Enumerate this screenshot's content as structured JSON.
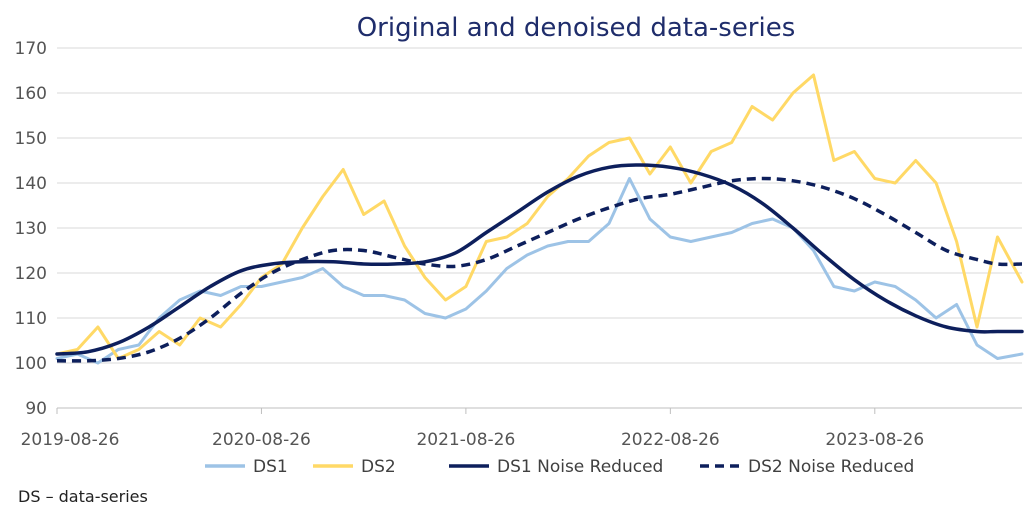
{
  "chart_data": {
    "type": "line",
    "title": "Original and denoised data-series",
    "xlabel": "",
    "ylabel": "",
    "ylim": [
      90,
      170
    ],
    "y_ticks": [
      90,
      100,
      110,
      120,
      130,
      140,
      150,
      160,
      170
    ],
    "x_range": [
      2019.65,
      2024.37
    ],
    "x_ticks": [
      {
        "label": "2019-08-26",
        "x": 2019.65
      },
      {
        "label": "2020-08-26",
        "x": 2020.65
      },
      {
        "label": "2021-08-26",
        "x": 2021.65
      },
      {
        "label": "2022-08-26",
        "x": 2022.65
      },
      {
        "label": "2023-08-26",
        "x": 2023.65
      }
    ],
    "grid": true,
    "legend_position": "bottom",
    "footnote": "DS – data-series",
    "series": [
      {
        "name": "DS1",
        "color": "#9dc3e6",
        "dash": "solid",
        "x": [
          2019.65,
          2019.75,
          2019.85,
          2019.95,
          2020.05,
          2020.15,
          2020.25,
          2020.35,
          2020.45,
          2020.55,
          2020.65,
          2020.75,
          2020.85,
          2020.95,
          2021.05,
          2021.15,
          2021.25,
          2021.35,
          2021.45,
          2021.55,
          2021.65,
          2021.75,
          2021.85,
          2021.95,
          2022.05,
          2022.15,
          2022.25,
          2022.35,
          2022.45,
          2022.55,
          2022.65,
          2022.75,
          2022.85,
          2022.95,
          2023.05,
          2023.15,
          2023.25,
          2023.35,
          2023.45,
          2023.55,
          2023.65,
          2023.75,
          2023.85,
          2023.95,
          2024.05,
          2024.15,
          2024.25,
          2024.37
        ],
        "y": [
          101,
          102,
          100,
          103,
          104,
          110,
          114,
          116,
          115,
          117,
          117,
          118,
          119,
          121,
          117,
          115,
          115,
          114,
          111,
          110,
          112,
          116,
          121,
          124,
          126,
          127,
          127,
          131,
          141,
          132,
          128,
          127,
          128,
          129,
          131,
          132,
          130,
          125,
          117,
          116,
          118,
          117,
          114,
          110,
          113,
          104,
          101,
          102
        ]
      },
      {
        "name": "DS2",
        "color": "#ffd966",
        "dash": "solid",
        "x": [
          2019.65,
          2019.75,
          2019.85,
          2019.95,
          2020.05,
          2020.15,
          2020.25,
          2020.35,
          2020.45,
          2020.55,
          2020.65,
          2020.75,
          2020.85,
          2020.95,
          2021.05,
          2021.15,
          2021.25,
          2021.35,
          2021.45,
          2021.55,
          2021.65,
          2021.75,
          2021.85,
          2021.95,
          2022.05,
          2022.15,
          2022.25,
          2022.35,
          2022.45,
          2022.55,
          2022.65,
          2022.75,
          2022.85,
          2022.95,
          2023.05,
          2023.15,
          2023.25,
          2023.35,
          2023.45,
          2023.55,
          2023.65,
          2023.75,
          2023.85,
          2023.95,
          2024.05,
          2024.15,
          2024.25,
          2024.37
        ],
        "y": [
          102,
          103,
          108,
          101,
          103,
          107,
          104,
          110,
          108,
          113,
          119,
          122,
          130,
          137,
          143,
          133,
          136,
          126,
          119,
          114,
          117,
          127,
          128,
          131,
          137,
          141,
          146,
          149,
          150,
          142,
          148,
          140,
          147,
          149,
          157,
          154,
          160,
          164,
          145,
          147,
          141,
          140,
          145,
          140,
          127,
          108,
          128,
          118
        ]
      },
      {
        "name": "DS1 Noise Reduced",
        "color": "#0d1f5c",
        "dash": "solid",
        "x": [
          2019.65,
          2019.8,
          2019.95,
          2020.1,
          2020.25,
          2020.4,
          2020.55,
          2020.7,
          2020.85,
          2021.0,
          2021.15,
          2021.3,
          2021.45,
          2021.6,
          2021.75,
          2021.9,
          2022.05,
          2022.2,
          2022.35,
          2022.5,
          2022.65,
          2022.8,
          2022.95,
          2023.1,
          2023.25,
          2023.4,
          2023.55,
          2023.7,
          2023.85,
          2024.0,
          2024.15,
          2024.25,
          2024.37
        ],
        "y": [
          102,
          102.5,
          104.5,
          108,
          112.5,
          117,
          120.5,
          122,
          122.5,
          122.5,
          122,
          122,
          122.5,
          124.5,
          129,
          133.5,
          138,
          141.5,
          143.5,
          144,
          143.5,
          142,
          139.5,
          135.5,
          130,
          124,
          118.5,
          114,
          110.5,
          108,
          107,
          107,
          107
        ]
      },
      {
        "name": "DS2 Noise Reduced",
        "color": "#0d1f5c",
        "dash": "dashed",
        "x": [
          2019.65,
          2019.8,
          2019.95,
          2020.1,
          2020.25,
          2020.4,
          2020.55,
          2020.7,
          2020.85,
          2021.0,
          2021.15,
          2021.3,
          2021.45,
          2021.6,
          2021.75,
          2021.9,
          2022.05,
          2022.2,
          2022.35,
          2022.5,
          2022.65,
          2022.8,
          2022.95,
          2023.1,
          2023.25,
          2023.4,
          2023.55,
          2023.7,
          2023.85,
          2024.0,
          2024.15,
          2024.25,
          2024.37
        ],
        "y": [
          100.5,
          100.5,
          101,
          102.5,
          105.5,
          110,
          115.5,
          120,
          123,
          125,
          125,
          123.5,
          122,
          121.5,
          123,
          126,
          129,
          132,
          134.5,
          136.5,
          137.5,
          139,
          140.5,
          141,
          140.5,
          139,
          136.5,
          133,
          129,
          125,
          123,
          122,
          122
        ]
      }
    ]
  }
}
